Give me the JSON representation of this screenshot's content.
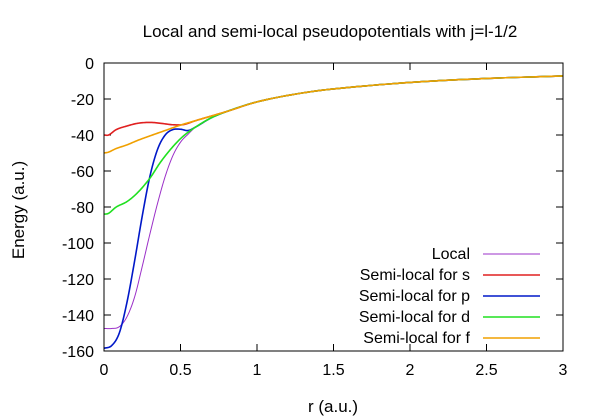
{
  "chart_data": {
    "type": "line",
    "title": "Local and semi-local pseudopotentials with j=l-1/2",
    "xlabel": "r (a.u.)",
    "ylabel": "Energy (a.u.)",
    "xlim": [
      0,
      3
    ],
    "ylim": [
      -160,
      0
    ],
    "x_ticks": [
      0,
      0.5,
      1,
      1.5,
      2,
      2.5,
      3
    ],
    "y_ticks": [
      0,
      -20,
      -40,
      -60,
      -80,
      -100,
      -120,
      -140,
      -160
    ],
    "x_tick_labels": [
      "0",
      "0.5",
      "1",
      "1.5",
      "2",
      "2.5",
      "3"
    ],
    "y_tick_labels": [
      "0",
      "-20",
      "-40",
      "-60",
      "-80",
      "-100",
      "-120",
      "-140",
      "-160"
    ],
    "grid": false,
    "legend_position": "bottom-right",
    "series": [
      {
        "name": "Local",
        "color": "#9b30c8",
        "x": [
          0,
          0.05,
          0.1,
          0.15,
          0.2,
          0.25,
          0.3,
          0.35,
          0.4,
          0.45,
          0.5,
          0.55,
          0.6,
          0.7,
          0.8,
          1.0,
          1.25,
          1.5,
          2.0,
          2.5,
          3.0
        ],
        "y": [
          -147.5,
          -147.5,
          -146.5,
          -141,
          -130,
          -113,
          -95,
          -78,
          -63,
          -51.5,
          -44,
          -39.5,
          -35.5,
          -30.5,
          -27,
          -21.6,
          -17.3,
          -14.4,
          -10.8,
          -8.6,
          -7.2
        ]
      },
      {
        "name": "Semi-local for s",
        "color": "#e02020",
        "x": [
          0,
          0.03,
          0.08,
          0.15,
          0.22,
          0.3,
          0.37,
          0.45,
          0.52,
          0.6,
          0.7,
          0.8,
          1.0,
          1.25,
          1.5,
          2.0,
          2.5,
          3.0
        ],
        "y": [
          -40,
          -40,
          -37,
          -35,
          -33.5,
          -33,
          -33.5,
          -34.3,
          -34.2,
          -32,
          -29.5,
          -27,
          -21.6,
          -17.3,
          -14.4,
          -10.8,
          -8.6,
          -7.2
        ]
      },
      {
        "name": "Semi-local for p",
        "color": "#0018c8",
        "x": [
          0,
          0.05,
          0.1,
          0.15,
          0.2,
          0.25,
          0.3,
          0.35,
          0.4,
          0.45,
          0.5,
          0.55,
          0.6,
          0.7,
          0.8,
          1.0,
          1.25,
          1.5,
          2.0,
          2.5,
          3.0
        ],
        "y": [
          -158.5,
          -157,
          -150,
          -133,
          -110,
          -85,
          -63,
          -48,
          -40,
          -37,
          -36.8,
          -37.5,
          -35.5,
          -30.5,
          -27,
          -21.6,
          -17.3,
          -14.4,
          -10.8,
          -8.6,
          -7.2
        ]
      },
      {
        "name": "Semi-local for d",
        "color": "#20e020",
        "x": [
          0,
          0.03,
          0.08,
          0.15,
          0.22,
          0.3,
          0.37,
          0.45,
          0.52,
          0.6,
          0.7,
          0.8,
          1.0,
          1.25,
          1.5,
          2.0,
          2.5,
          3.0
        ],
        "y": [
          -84,
          -83.5,
          -80,
          -77,
          -72,
          -64,
          -55,
          -46.5,
          -40.5,
          -35.5,
          -30.5,
          -27,
          -21.6,
          -17.3,
          -14.4,
          -10.8,
          -8.6,
          -7.2
        ]
      },
      {
        "name": "Semi-local for f",
        "color": "#f0a000",
        "x": [
          0,
          0.03,
          0.08,
          0.15,
          0.22,
          0.3,
          0.4,
          0.5,
          0.6,
          0.7,
          0.8,
          1.0,
          1.25,
          1.5,
          2.0,
          2.5,
          3.0
        ],
        "y": [
          -50,
          -49.5,
          -47.5,
          -45.5,
          -43,
          -40.5,
          -37.5,
          -34.5,
          -32,
          -29.5,
          -27,
          -21.6,
          -17.3,
          -14.4,
          -10.8,
          -8.6,
          -7.2
        ]
      }
    ]
  }
}
